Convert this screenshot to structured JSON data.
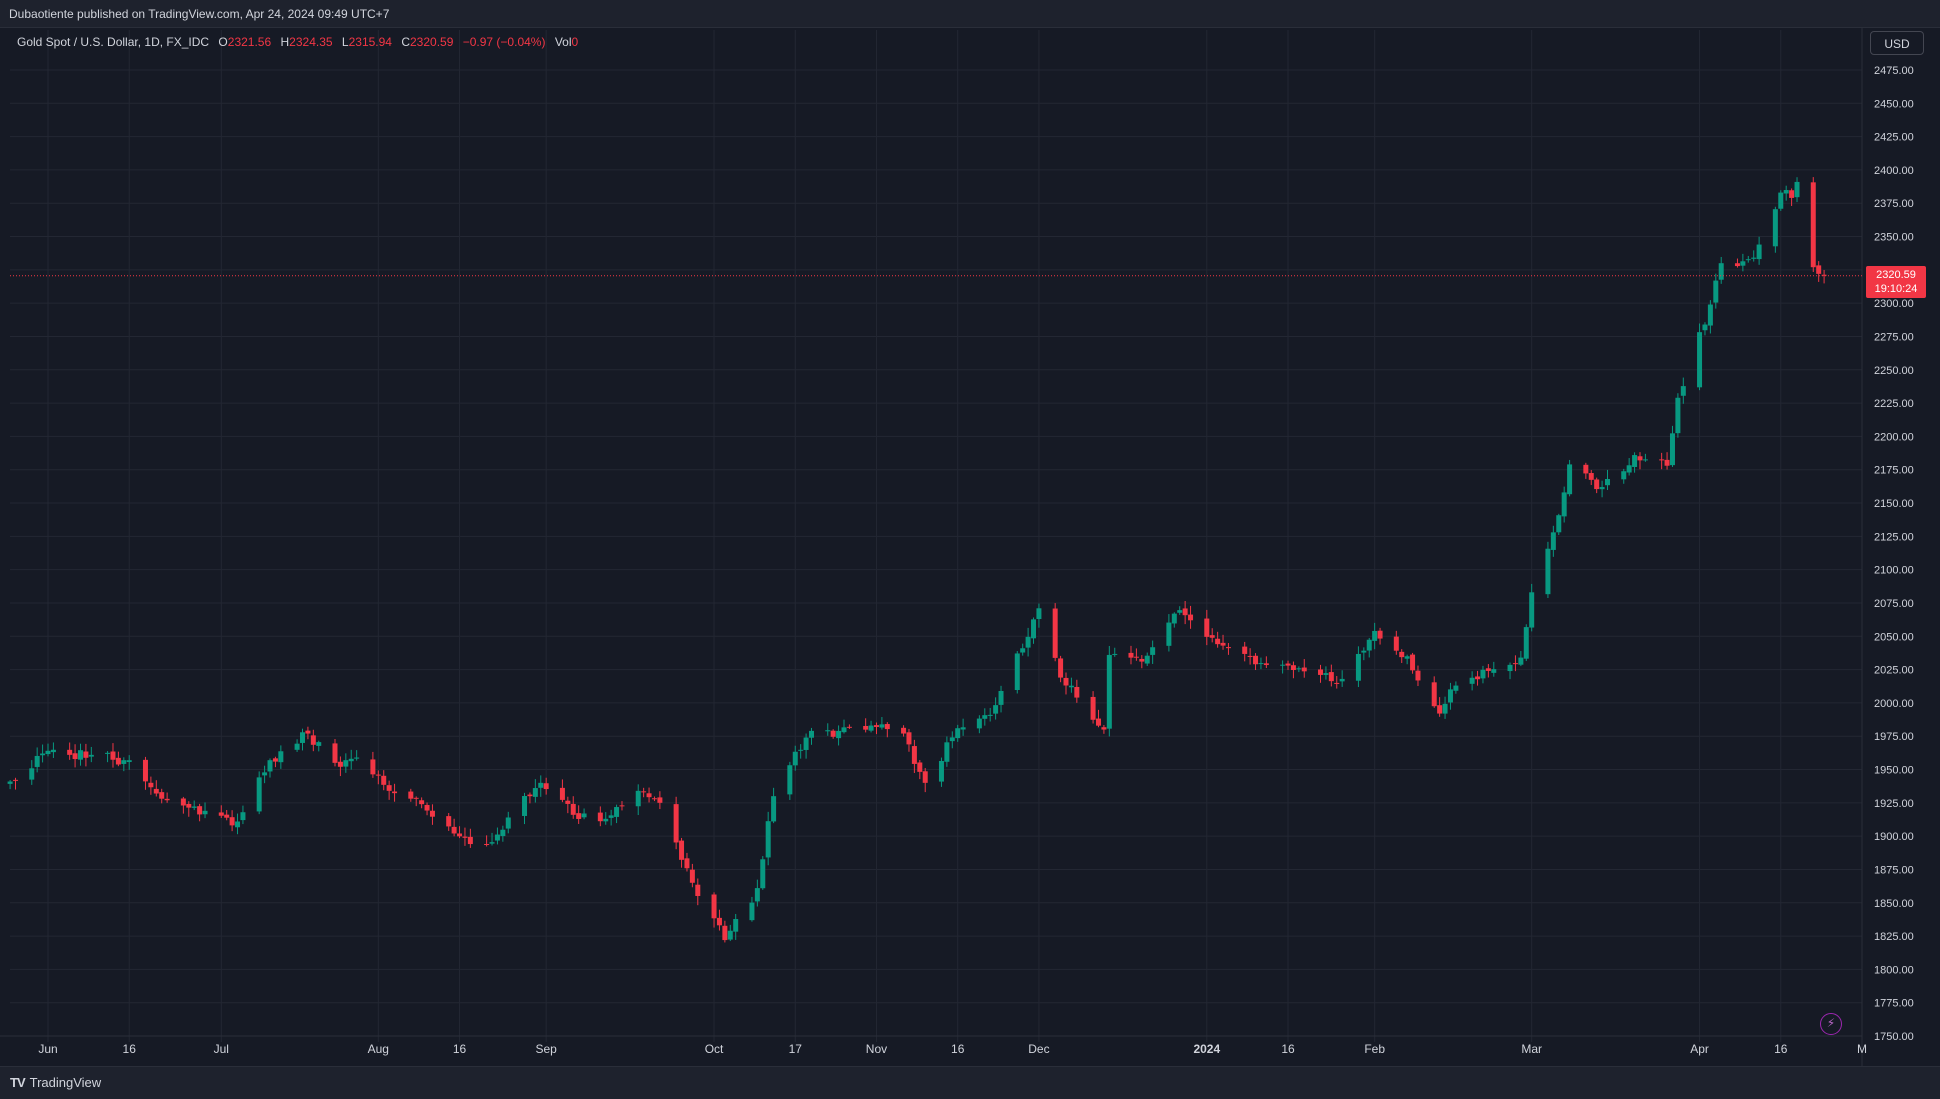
{
  "header": {
    "publish_line": "Dubaotiente published on TradingView.com, Apr 24, 2024 09:49 UTC+7"
  },
  "legend": {
    "symbol": "Gold Spot / U.S. Dollar, 1D, FX_IDC",
    "open_label": "O",
    "open": "2321.56",
    "high_label": "H",
    "high": "2324.35",
    "low_label": "L",
    "low": "2315.94",
    "close_label": "C",
    "close": "2320.59",
    "change": "−0.97 (−0.04%)",
    "vol_label": "Vol",
    "vol": "0"
  },
  "price_scale": {
    "currency": "USD"
  },
  "last_price": {
    "price": "2320.59",
    "countdown": "19:10:24"
  },
  "footer": {
    "brand": "TradingView",
    "logo_icon": "tradingview-logo-icon"
  },
  "colors": {
    "up": "#089981",
    "down": "#f23645",
    "background": "#161a25",
    "grid": "#232733",
    "text": "#d1d4dc"
  },
  "icons": {
    "bolt": "lightning-bolt-icon"
  },
  "chart_data": {
    "type": "candlestick",
    "symbol": "Gold Spot / U.S. Dollar",
    "interval": "1D",
    "ylim": [
      1750,
      2475
    ],
    "y_ticks": [
      "2475.00",
      "2450.00",
      "2425.00",
      "2400.00",
      "2375.00",
      "2350.00",
      "2325.00",
      "2300.00",
      "2275.00",
      "2250.00",
      "2225.00",
      "2200.00",
      "2175.00",
      "2150.00",
      "2125.00",
      "2100.00",
      "2075.00",
      "2050.00",
      "2025.00",
      "2000.00",
      "1975.00",
      "1950.00",
      "1925.00",
      "1900.00",
      "1875.00",
      "1850.00",
      "1825.00",
      "1800.00",
      "1775.00",
      "1750.00"
    ],
    "x_ticks": [
      {
        "label": "Jun",
        "date": "2023-06-01"
      },
      {
        "label": "16",
        "date": "2023-06-16"
      },
      {
        "label": "Jul",
        "date": "2023-07-03"
      },
      {
        "label": "Aug",
        "date": "2023-08-01"
      },
      {
        "label": "16",
        "date": "2023-08-16"
      },
      {
        "label": "Sep",
        "date": "2023-09-01"
      },
      {
        "label": "Oct",
        "date": "2023-10-02"
      },
      {
        "label": "17",
        "date": "2023-10-17"
      },
      {
        "label": "Nov",
        "date": "2023-11-01"
      },
      {
        "label": "16",
        "date": "2023-11-16"
      },
      {
        "label": "Dec",
        "date": "2023-12-01"
      },
      {
        "label": "2024",
        "date": "2024-01-01"
      },
      {
        "label": "16",
        "date": "2024-01-16"
      },
      {
        "label": "Feb",
        "date": "2024-02-01"
      },
      {
        "label": "Mar",
        "date": "2024-03-01"
      },
      {
        "label": "Apr",
        "date": "2024-04-01"
      },
      {
        "label": "16",
        "date": "2024-04-16"
      },
      {
        "label": "M",
        "date": "2024-05-01"
      }
    ],
    "last_price_line": 2320.59,
    "closes": [
      {
        "date": "2023-05-25",
        "close": 1941
      },
      {
        "date": "2023-05-31",
        "close": 1962
      },
      {
        "date": "2023-06-05",
        "close": 1961
      },
      {
        "date": "2023-06-09",
        "close": 1961
      },
      {
        "date": "2023-06-15",
        "close": 1957
      },
      {
        "date": "2023-06-21",
        "close": 1932
      },
      {
        "date": "2023-06-26",
        "close": 1923
      },
      {
        "date": "2023-06-30",
        "close": 1919
      },
      {
        "date": "2023-07-06",
        "close": 1911
      },
      {
        "date": "2023-07-12",
        "close": 1957
      },
      {
        "date": "2023-07-19",
        "close": 1977
      },
      {
        "date": "2023-07-24",
        "close": 1955
      },
      {
        "date": "2023-07-28",
        "close": 1959
      },
      {
        "date": "2023-08-03",
        "close": 1934
      },
      {
        "date": "2023-08-09",
        "close": 1924
      },
      {
        "date": "2023-08-15",
        "close": 1902
      },
      {
        "date": "2023-08-21",
        "close": 1894
      },
      {
        "date": "2023-08-25",
        "close": 1914
      },
      {
        "date": "2023-08-31",
        "close": 1940
      },
      {
        "date": "2023-09-06",
        "close": 1916
      },
      {
        "date": "2023-09-12",
        "close": 1913
      },
      {
        "date": "2023-09-18",
        "close": 1934
      },
      {
        "date": "2023-09-22",
        "close": 1925
      },
      {
        "date": "2023-09-28",
        "close": 1865
      },
      {
        "date": "2023-10-04",
        "close": 1822
      },
      {
        "date": "2023-10-10",
        "close": 1861
      },
      {
        "date": "2023-10-13",
        "close": 1930
      },
      {
        "date": "2023-10-19",
        "close": 1974
      },
      {
        "date": "2023-10-25",
        "close": 1979
      },
      {
        "date": "2023-10-31",
        "close": 1983
      },
      {
        "date": "2023-11-06",
        "close": 1977
      },
      {
        "date": "2023-11-10",
        "close": 1940
      },
      {
        "date": "2023-11-16",
        "close": 1981
      },
      {
        "date": "2023-11-22",
        "close": 1991
      },
      {
        "date": "2023-11-28",
        "close": 2041
      },
      {
        "date": "2023-12-01",
        "close": 2071
      },
      {
        "date": "2023-12-05",
        "close": 2019
      },
      {
        "date": "2023-12-08",
        "close": 2004
      },
      {
        "date": "2023-12-13",
        "close": 1980
      },
      {
        "date": "2023-12-14",
        "close": 2036
      },
      {
        "date": "2023-12-20",
        "close": 2031
      },
      {
        "date": "2023-12-26",
        "close": 2067
      },
      {
        "date": "2023-12-29",
        "close": 2062
      },
      {
        "date": "2024-01-04",
        "close": 2043
      },
      {
        "date": "2024-01-10",
        "close": 2029
      },
      {
        "date": "2024-01-16",
        "close": 2028
      },
      {
        "date": "2024-01-22",
        "close": 2021
      },
      {
        "date": "2024-01-26",
        "close": 2018
      },
      {
        "date": "2024-02-01",
        "close": 2054
      },
      {
        "date": "2024-02-07",
        "close": 2035
      },
      {
        "date": "2024-02-13",
        "close": 1992
      },
      {
        "date": "2024-02-16",
        "close": 2013
      },
      {
        "date": "2024-02-22",
        "close": 2024
      },
      {
        "date": "2024-02-28",
        "close": 2034
      },
      {
        "date": "2024-03-01",
        "close": 2083
      },
      {
        "date": "2024-03-05",
        "close": 2128
      },
      {
        "date": "2024-03-08",
        "close": 2179
      },
      {
        "date": "2024-03-14",
        "close": 2162
      },
      {
        "date": "2024-03-20",
        "close": 2186
      },
      {
        "date": "2024-03-26",
        "close": 2178
      },
      {
        "date": "2024-03-28",
        "close": 2229
      },
      {
        "date": "2024-04-03",
        "close": 2299
      },
      {
        "date": "2024-04-05",
        "close": 2330
      },
      {
        "date": "2024-04-10",
        "close": 2333
      },
      {
        "date": "2024-04-12",
        "close": 2344
      },
      {
        "date": "2024-04-16",
        "close": 2383
      },
      {
        "date": "2024-04-18",
        "close": 2379
      },
      {
        "date": "2024-04-19",
        "close": 2391
      },
      {
        "date": "2024-04-22",
        "close": 2327
      },
      {
        "date": "2024-04-23",
        "close": 2322
      },
      {
        "date": "2024-04-24",
        "close": 2320.59
      }
    ]
  }
}
